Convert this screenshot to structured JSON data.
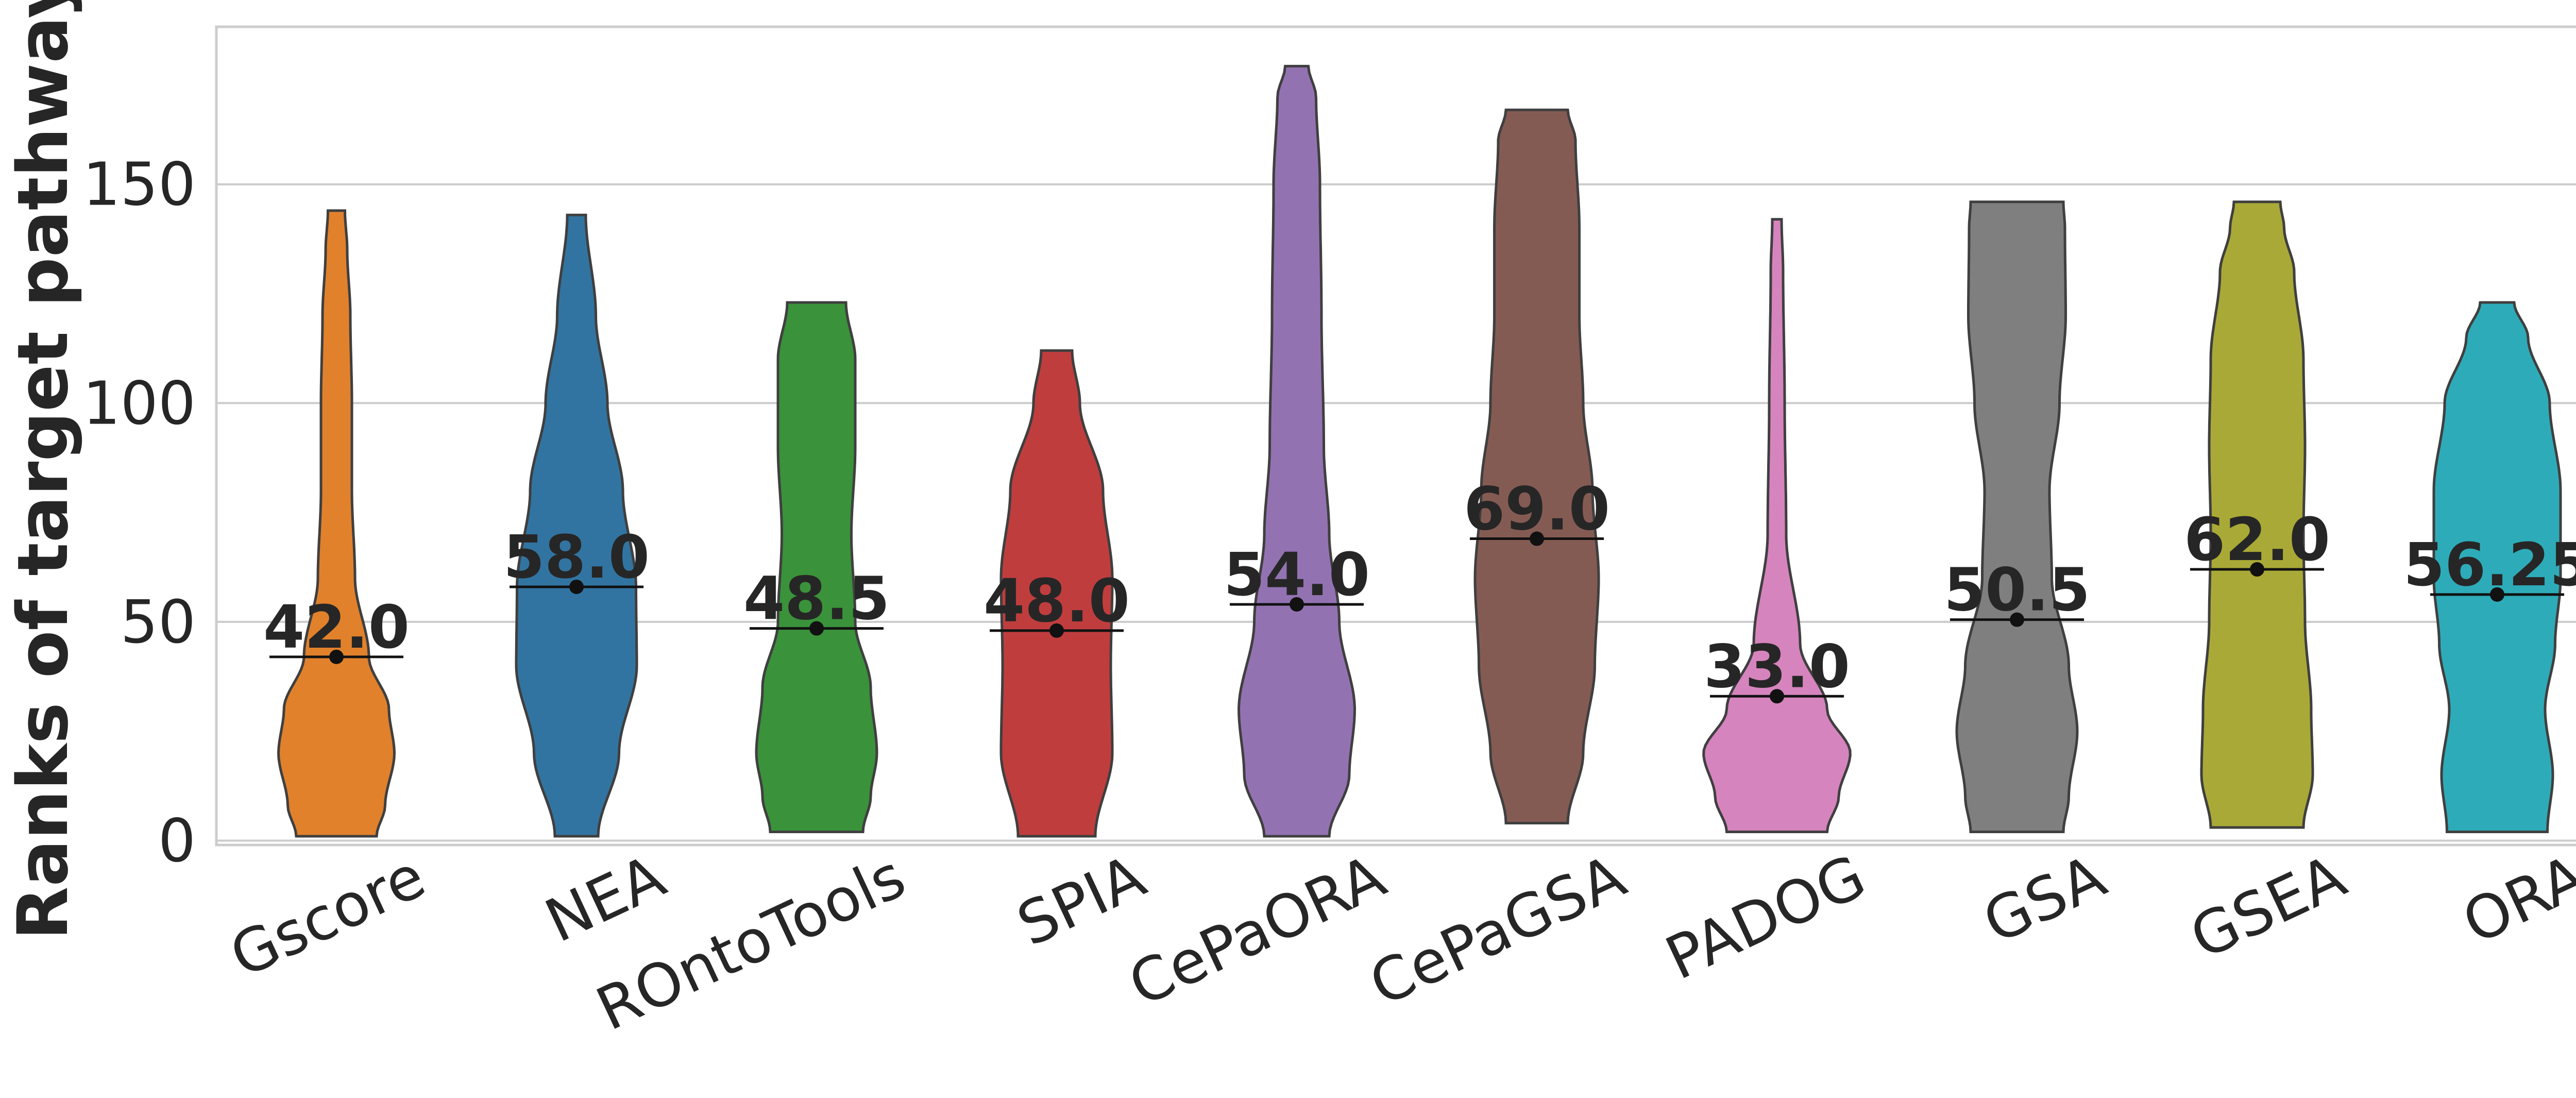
{
  "chart_data": {
    "type": "violin",
    "title": "",
    "xlabel": "",
    "ylabel": "Ranks of target pathways",
    "ylim": [
      -1,
      186
    ],
    "yticks": [
      0,
      50,
      100,
      150
    ],
    "grid": "horizontal",
    "categories": [
      "Gscore",
      "NEA",
      "ROntoTools",
      "SPIA",
      "CePaORA",
      "CePaGSA",
      "PADOG",
      "GSA",
      "GSEA",
      "ORA"
    ],
    "series": [
      {
        "category": "Gscore",
        "color": "#e1812c",
        "min": 1,
        "max": 144,
        "median": 42.0,
        "median_label": "42.0",
        "profile": [
          [
            1,
            0.52
          ],
          [
            8,
            0.63
          ],
          [
            20,
            0.75
          ],
          [
            30,
            0.68
          ],
          [
            42,
            0.42
          ],
          [
            60,
            0.24
          ],
          [
            80,
            0.2
          ],
          [
            100,
            0.2
          ],
          [
            120,
            0.18
          ],
          [
            135,
            0.14
          ],
          [
            144,
            0.11
          ]
        ]
      },
      {
        "category": "NEA",
        "color": "#3274a1",
        "min": 1,
        "max": 143,
        "median": 58.0,
        "median_label": "58.0",
        "profile": [
          [
            1,
            0.28
          ],
          [
            20,
            0.55
          ],
          [
            40,
            0.78
          ],
          [
            58,
            0.77
          ],
          [
            80,
            0.6
          ],
          [
            100,
            0.4
          ],
          [
            120,
            0.25
          ],
          [
            143,
            0.12
          ]
        ]
      },
      {
        "category": "ROntoTools",
        "color": "#3a923a",
        "min": 2,
        "max": 123,
        "median": 48.5,
        "median_label": "48.5",
        "profile": [
          [
            2,
            0.6
          ],
          [
            10,
            0.7
          ],
          [
            20,
            0.78
          ],
          [
            35,
            0.7
          ],
          [
            50,
            0.5
          ],
          [
            70,
            0.45
          ],
          [
            90,
            0.5
          ],
          [
            110,
            0.5
          ],
          [
            123,
            0.38
          ]
        ]
      },
      {
        "category": "SPIA",
        "color": "#c03d3e",
        "min": 1,
        "max": 112,
        "median": 48.0,
        "median_label": "48.0",
        "profile": [
          [
            1,
            0.5
          ],
          [
            20,
            0.72
          ],
          [
            40,
            0.7
          ],
          [
            60,
            0.72
          ],
          [
            80,
            0.6
          ],
          [
            100,
            0.3
          ],
          [
            112,
            0.2
          ]
        ]
      },
      {
        "category": "CePaORA",
        "color": "#9372b2",
        "min": 1,
        "max": 177,
        "median": 54.0,
        "median_label": "54.0",
        "profile": [
          [
            1,
            0.42
          ],
          [
            15,
            0.68
          ],
          [
            30,
            0.75
          ],
          [
            50,
            0.55
          ],
          [
            70,
            0.42
          ],
          [
            90,
            0.35
          ],
          [
            120,
            0.32
          ],
          [
            150,
            0.3
          ],
          [
            170,
            0.25
          ],
          [
            177,
            0.15
          ]
        ]
      },
      {
        "category": "CePaGSA",
        "color": "#845b53",
        "min": 4,
        "max": 167,
        "median": 69.0,
        "median_label": "69.0",
        "profile": [
          [
            4,
            0.4
          ],
          [
            20,
            0.6
          ],
          [
            40,
            0.75
          ],
          [
            60,
            0.8
          ],
          [
            80,
            0.72
          ],
          [
            100,
            0.6
          ],
          [
            120,
            0.55
          ],
          [
            140,
            0.55
          ],
          [
            160,
            0.5
          ],
          [
            167,
            0.4
          ]
        ]
      },
      {
        "category": "PADOG",
        "color": "#d684bd",
        "min": 2,
        "max": 142,
        "median": 33.0,
        "median_label": "33.0",
        "profile": [
          [
            2,
            0.65
          ],
          [
            10,
            0.8
          ],
          [
            20,
            0.95
          ],
          [
            30,
            0.65
          ],
          [
            45,
            0.3
          ],
          [
            70,
            0.12
          ],
          [
            100,
            0.1
          ],
          [
            130,
            0.08
          ],
          [
            142,
            0.06
          ]
        ]
      },
      {
        "category": "GSA",
        "color": "#7f7f7f",
        "min": 2,
        "max": 146,
        "median": 50.5,
        "median_label": "50.5",
        "profile": [
          [
            2,
            0.6
          ],
          [
            10,
            0.67
          ],
          [
            25,
            0.78
          ],
          [
            40,
            0.67
          ],
          [
            60,
            0.45
          ],
          [
            80,
            0.42
          ],
          [
            100,
            0.55
          ],
          [
            120,
            0.63
          ],
          [
            140,
            0.62
          ],
          [
            146,
            0.6
          ]
        ]
      },
      {
        "category": "GSEA",
        "color": "#a9a937",
        "min": 3,
        "max": 146,
        "median": 62.0,
        "median_label": "62.0",
        "profile": [
          [
            3,
            0.6
          ],
          [
            15,
            0.72
          ],
          [
            30,
            0.7
          ],
          [
            50,
            0.62
          ],
          [
            70,
            0.6
          ],
          [
            90,
            0.62
          ],
          [
            110,
            0.6
          ],
          [
            130,
            0.48
          ],
          [
            140,
            0.35
          ],
          [
            146,
            0.3
          ]
        ]
      },
      {
        "category": "ORA",
        "color": "#2eabb8",
        "min": 2,
        "max": 123,
        "median": 56.25,
        "median_label": "56.25",
        "profile": [
          [
            2,
            0.65
          ],
          [
            15,
            0.72
          ],
          [
            30,
            0.62
          ],
          [
            45,
            0.75
          ],
          [
            60,
            0.82
          ],
          [
            80,
            0.82
          ],
          [
            100,
            0.68
          ],
          [
            115,
            0.4
          ],
          [
            123,
            0.22
          ]
        ]
      }
    ]
  }
}
